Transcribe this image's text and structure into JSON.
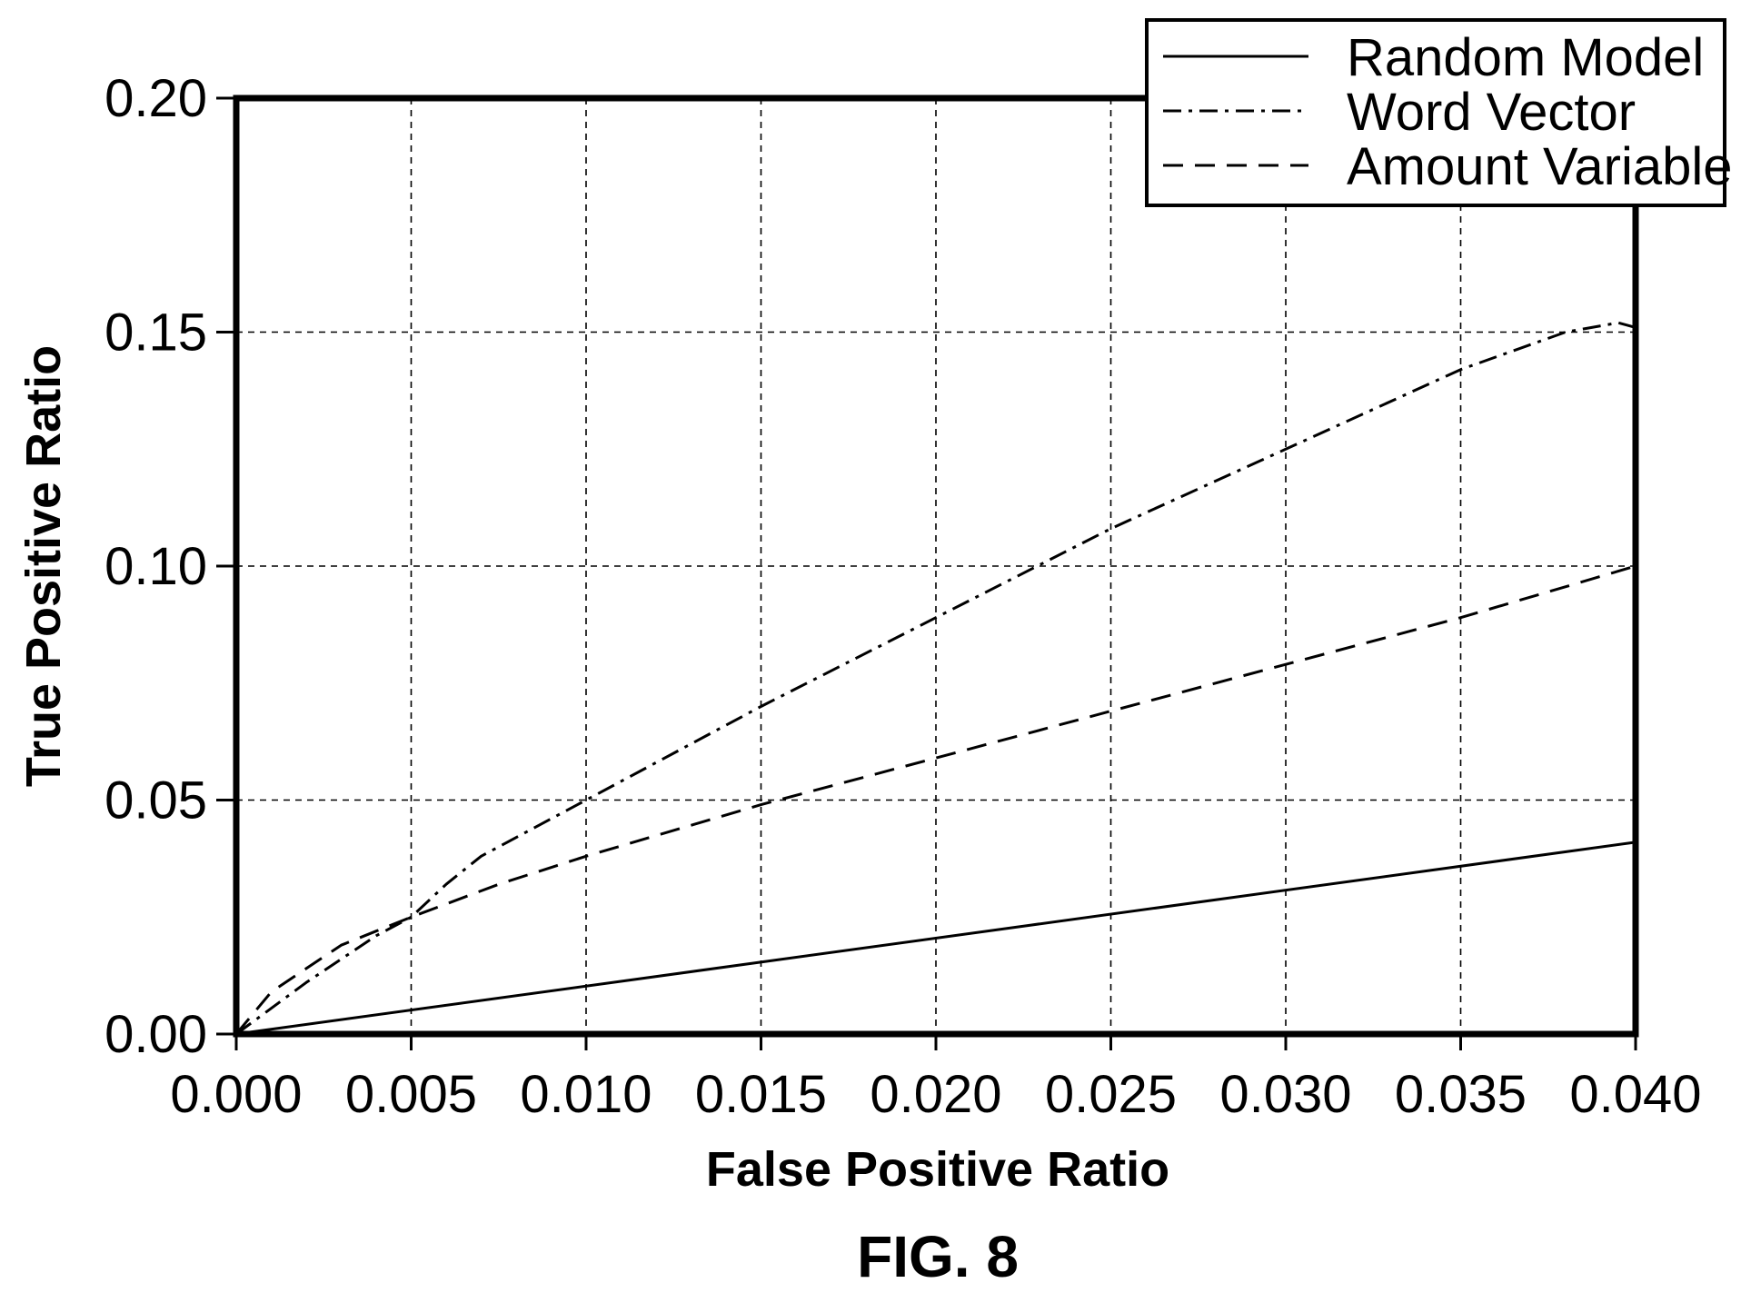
{
  "figure_label": "FIG. 8",
  "chart_data": {
    "type": "line",
    "title": "",
    "xlabel": "False Positive Ratio",
    "ylabel": "True Positive Ratio",
    "xlim": [
      0.0,
      0.04
    ],
    "ylim": [
      0.0,
      0.2
    ],
    "xticks": [
      0.0,
      0.005,
      0.01,
      0.015,
      0.02,
      0.025,
      0.03,
      0.035,
      0.04
    ],
    "xtick_labels": [
      "0.000",
      "0.005",
      "0.010",
      "0.015",
      "0.020",
      "0.025",
      "0.030",
      "0.035",
      "0.040"
    ],
    "yticks": [
      0.0,
      0.05,
      0.1,
      0.15,
      0.2
    ],
    "ytick_labels": [
      "0.00",
      "0.05",
      "0.10",
      "0.15",
      "0.20"
    ],
    "grid": true,
    "legend_position": "top-right",
    "series": [
      {
        "name": "Random Model",
        "style": "solid",
        "x": [
          0.0,
          0.04
        ],
        "y": [
          0.0,
          0.041
        ]
      },
      {
        "name": "Word Vector",
        "style": "dashdot",
        "x": [
          0.0,
          0.002,
          0.004,
          0.005,
          0.006,
          0.007,
          0.008,
          0.01,
          0.012,
          0.015,
          0.02,
          0.025,
          0.03,
          0.035,
          0.038,
          0.0395,
          0.04
        ],
        "y": [
          0.0,
          0.011,
          0.021,
          0.025,
          0.032,
          0.038,
          0.042,
          0.05,
          0.058,
          0.07,
          0.089,
          0.108,
          0.125,
          0.142,
          0.15,
          0.152,
          0.151
        ]
      },
      {
        "name": "Amount Variable",
        "style": "dashed",
        "x": [
          0.0,
          0.001,
          0.002,
          0.003,
          0.004,
          0.005,
          0.0075,
          0.01,
          0.015,
          0.02,
          0.025,
          0.03,
          0.035,
          0.04
        ],
        "y": [
          0.0,
          0.009,
          0.014,
          0.019,
          0.022,
          0.025,
          0.032,
          0.038,
          0.049,
          0.059,
          0.069,
          0.079,
          0.089,
          0.1
        ]
      }
    ]
  }
}
